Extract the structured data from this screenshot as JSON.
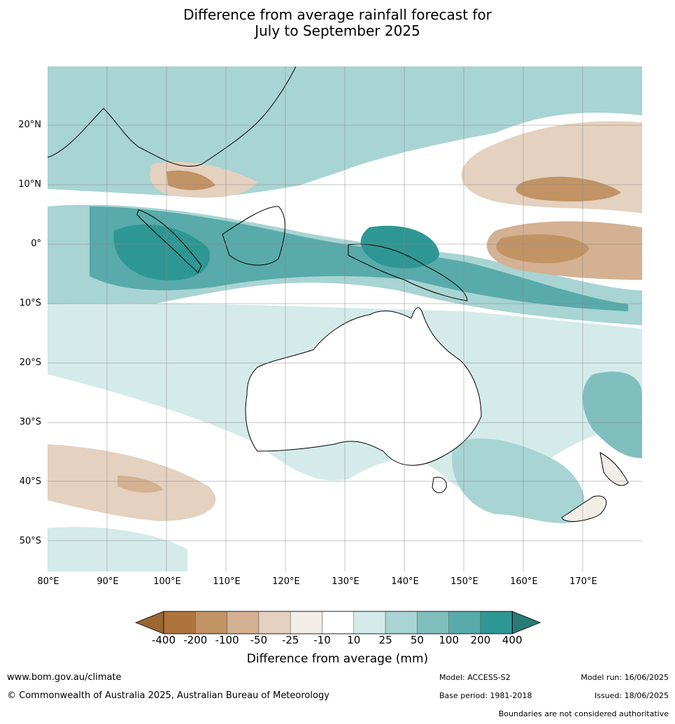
{
  "title_line1": "Difference from average rainfall forecast for",
  "title_line2": "July to September 2025",
  "lat_labels": [
    "20°N",
    "10°N",
    "0°",
    "10°S",
    "20°S",
    "30°S",
    "40°S",
    "50°S"
  ],
  "lon_labels": [
    "80°E",
    "90°E",
    "100°E",
    "110°E",
    "120°E",
    "130°E",
    "140°E",
    "150°E",
    "160°E",
    "170°E"
  ],
  "colorbar": {
    "label": "Difference from average (mm)",
    "ticks": [
      "-400",
      "-200",
      "-100",
      "-50",
      "-25",
      "-10",
      "10",
      "25",
      "50",
      "100",
      "200",
      "400"
    ],
    "colors": [
      "#9c6630",
      "#ad743d",
      "#c29364",
      "#d3b192",
      "#e4d1bf",
      "#f2ede7",
      "#ffffff",
      "#d4ebea",
      "#a8d4d3",
      "#80bfbe",
      "#58abaa",
      "#2e9794",
      "#2a7a78"
    ]
  },
  "footer": {
    "website": "www.bom.gov.au/climate",
    "copyright": "© Commonwealth of Australia 2025, Australian Bureau of Meteorology",
    "model": "Model: ACCESS-S2",
    "base_period": "Base period: 1981-2018",
    "model_run": "Model run: 16/06/2025",
    "issued": "Issued: 18/06/2025",
    "disclaimer": "Boundaries are not considered authoritative"
  }
}
